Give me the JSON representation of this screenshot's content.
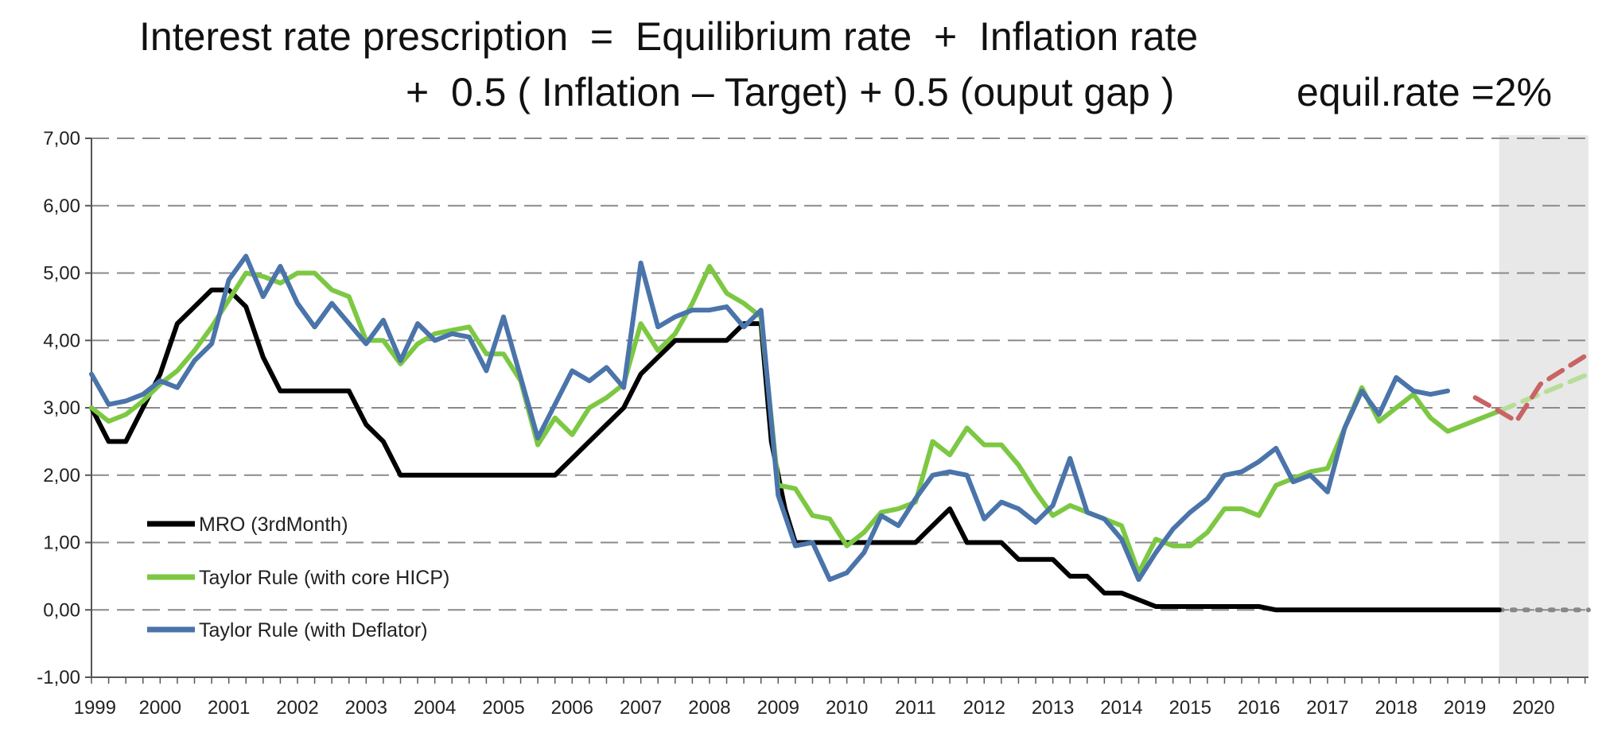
{
  "header": {
    "line1": "Interest rate prescription  =  Equilibrium rate  +  Inflation rate",
    "line2": "+  0.5 ( Inflation – Target) + 0.5 (ouput gap )",
    "line3": "equil.rate =2%"
  },
  "chart_data": {
    "type": "line",
    "title": "",
    "xlabel": "",
    "ylabel": "",
    "ylim": [
      -1,
      7
    ],
    "xlim": [
      1999,
      2020.8
    ],
    "y_ticks": [
      "-1,00",
      "0,00",
      "1,00",
      "2,00",
      "3,00",
      "4,00",
      "5,00",
      "6,00",
      "7,00"
    ],
    "y_tick_values": [
      -1,
      0,
      1,
      2,
      3,
      4,
      5,
      6,
      7
    ],
    "x_ticks": [
      "1999",
      "2000",
      "2001",
      "2002",
      "2003",
      "2004",
      "2005",
      "2006",
      "2007",
      "2008",
      "2009",
      "2010",
      "2011",
      "2012",
      "2013",
      "2014",
      "2015",
      "2016",
      "2017",
      "2018",
      "2019",
      "2020"
    ],
    "x_tick_values": [
      1999,
      2000,
      2001,
      2002,
      2003,
      2004,
      2005,
      2006,
      2007,
      2008,
      2009,
      2010,
      2011,
      2012,
      2013,
      2014,
      2015,
      2016,
      2017,
      2018,
      2019,
      2020
    ],
    "grid": "horizontal-dashed",
    "legend_position": "bottom-left",
    "forecast_shading": {
      "from": 2019.5,
      "to": 2020.8,
      "color": "#e8e8e8"
    },
    "series": [
      {
        "name": "MRO (3rdMonth)",
        "color": "#000000",
        "points": [
          [
            1999.0,
            3.0
          ],
          [
            1999.25,
            2.5
          ],
          [
            1999.5,
            2.5
          ],
          [
            1999.75,
            3.0
          ],
          [
            2000.0,
            3.5
          ],
          [
            2000.25,
            4.25
          ],
          [
            2000.5,
            4.5
          ],
          [
            2000.75,
            4.75
          ],
          [
            2001.0,
            4.75
          ],
          [
            2001.25,
            4.5
          ],
          [
            2001.5,
            3.75
          ],
          [
            2001.75,
            3.25
          ],
          [
            2002.0,
            3.25
          ],
          [
            2002.25,
            3.25
          ],
          [
            2002.5,
            3.25
          ],
          [
            2002.75,
            3.25
          ],
          [
            2003.0,
            2.75
          ],
          [
            2003.25,
            2.5
          ],
          [
            2003.5,
            2.0
          ],
          [
            2003.75,
            2.0
          ],
          [
            2004.0,
            2.0
          ],
          [
            2004.5,
            2.0
          ],
          [
            2005.0,
            2.0
          ],
          [
            2005.5,
            2.0
          ],
          [
            2005.75,
            2.0
          ],
          [
            2006.0,
            2.25
          ],
          [
            2006.25,
            2.5
          ],
          [
            2006.5,
            2.75
          ],
          [
            2006.75,
            3.0
          ],
          [
            2007.0,
            3.5
          ],
          [
            2007.25,
            3.75
          ],
          [
            2007.5,
            4.0
          ],
          [
            2007.75,
            4.0
          ],
          [
            2008.0,
            4.0
          ],
          [
            2008.25,
            4.0
          ],
          [
            2008.5,
            4.25
          ],
          [
            2008.75,
            4.25
          ],
          [
            2008.9,
            2.5
          ],
          [
            2009.1,
            1.5
          ],
          [
            2009.25,
            1.0
          ],
          [
            2009.5,
            1.0
          ],
          [
            2010.0,
            1.0
          ],
          [
            2010.5,
            1.0
          ],
          [
            2011.0,
            1.0
          ],
          [
            2011.25,
            1.25
          ],
          [
            2011.5,
            1.5
          ],
          [
            2011.75,
            1.0
          ],
          [
            2012.0,
            1.0
          ],
          [
            2012.25,
            1.0
          ],
          [
            2012.5,
            0.75
          ],
          [
            2012.75,
            0.75
          ],
          [
            2013.0,
            0.75
          ],
          [
            2013.25,
            0.5
          ],
          [
            2013.5,
            0.5
          ],
          [
            2013.75,
            0.25
          ],
          [
            2014.0,
            0.25
          ],
          [
            2014.25,
            0.15
          ],
          [
            2014.5,
            0.05
          ],
          [
            2015.0,
            0.05
          ],
          [
            2015.5,
            0.05
          ],
          [
            2016.0,
            0.05
          ],
          [
            2016.25,
            0.0
          ],
          [
            2017.0,
            0.0
          ],
          [
            2018.0,
            0.0
          ],
          [
            2019.0,
            0.0
          ],
          [
            2019.5,
            0.0
          ]
        ],
        "projection": {
          "color": "#888888",
          "style": "dotted",
          "points": [
            [
              2019.5,
              0.0
            ],
            [
              2020.8,
              0.0
            ]
          ]
        }
      },
      {
        "name": "Taylor Rule (with core HICP)",
        "color": "#7dc843",
        "points": [
          [
            1999.0,
            3.0
          ],
          [
            1999.25,
            2.8
          ],
          [
            1999.5,
            2.9
          ],
          [
            1999.75,
            3.1
          ],
          [
            2000.0,
            3.35
          ],
          [
            2000.25,
            3.55
          ],
          [
            2000.5,
            3.85
          ],
          [
            2000.75,
            4.2
          ],
          [
            2001.0,
            4.6
          ],
          [
            2001.25,
            5.0
          ],
          [
            2001.5,
            4.95
          ],
          [
            2001.75,
            4.85
          ],
          [
            2002.0,
            5.0
          ],
          [
            2002.25,
            5.0
          ],
          [
            2002.5,
            4.75
          ],
          [
            2002.75,
            4.65
          ],
          [
            2003.0,
            4.0
          ],
          [
            2003.25,
            4.0
          ],
          [
            2003.5,
            3.65
          ],
          [
            2003.75,
            3.95
          ],
          [
            2004.0,
            4.1
          ],
          [
            2004.25,
            4.15
          ],
          [
            2004.5,
            4.2
          ],
          [
            2004.75,
            3.8
          ],
          [
            2005.0,
            3.8
          ],
          [
            2005.25,
            3.4
          ],
          [
            2005.5,
            2.45
          ],
          [
            2005.75,
            2.85
          ],
          [
            2006.0,
            2.6
          ],
          [
            2006.25,
            3.0
          ],
          [
            2006.5,
            3.15
          ],
          [
            2006.75,
            3.35
          ],
          [
            2007.0,
            4.25
          ],
          [
            2007.25,
            3.85
          ],
          [
            2007.5,
            4.1
          ],
          [
            2007.75,
            4.55
          ],
          [
            2008.0,
            5.1
          ],
          [
            2008.25,
            4.7
          ],
          [
            2008.5,
            4.55
          ],
          [
            2008.75,
            4.35
          ],
          [
            2009.0,
            1.85
          ],
          [
            2009.25,
            1.8
          ],
          [
            2009.5,
            1.4
          ],
          [
            2009.75,
            1.35
          ],
          [
            2010.0,
            0.95
          ],
          [
            2010.25,
            1.15
          ],
          [
            2010.5,
            1.45
          ],
          [
            2010.75,
            1.5
          ],
          [
            2011.0,
            1.6
          ],
          [
            2011.25,
            2.5
          ],
          [
            2011.5,
            2.3
          ],
          [
            2011.75,
            2.7
          ],
          [
            2012.0,
            2.45
          ],
          [
            2012.25,
            2.45
          ],
          [
            2012.5,
            2.15
          ],
          [
            2012.75,
            1.75
          ],
          [
            2013.0,
            1.4
          ],
          [
            2013.25,
            1.55
          ],
          [
            2013.5,
            1.45
          ],
          [
            2013.75,
            1.35
          ],
          [
            2014.0,
            1.25
          ],
          [
            2014.25,
            0.55
          ],
          [
            2014.5,
            1.05
          ],
          [
            2014.75,
            0.95
          ],
          [
            2015.0,
            0.95
          ],
          [
            2015.25,
            1.15
          ],
          [
            2015.5,
            1.5
          ],
          [
            2015.75,
            1.5
          ],
          [
            2016.0,
            1.4
          ],
          [
            2016.25,
            1.85
          ],
          [
            2016.5,
            1.95
          ],
          [
            2016.75,
            2.05
          ],
          [
            2017.0,
            2.1
          ],
          [
            2017.25,
            2.7
          ],
          [
            2017.5,
            3.3
          ],
          [
            2017.75,
            2.8
          ],
          [
            2018.0,
            3.0
          ],
          [
            2018.25,
            3.2
          ],
          [
            2018.5,
            2.85
          ],
          [
            2018.75,
            2.65
          ],
          [
            2019.0,
            2.75
          ],
          [
            2019.25,
            2.85
          ],
          [
            2019.5,
            2.95
          ]
        ],
        "projection": {
          "color": "#b7dd98",
          "style": "dashed",
          "points": [
            [
              2019.5,
              2.95
            ],
            [
              2020.8,
              3.5
            ]
          ]
        }
      },
      {
        "name": "Taylor Rule (with Deflator)",
        "color": "#4a74aa",
        "points": [
          [
            1999.0,
            3.5
          ],
          [
            1999.25,
            3.05
          ],
          [
            1999.5,
            3.1
          ],
          [
            1999.75,
            3.2
          ],
          [
            2000.0,
            3.4
          ],
          [
            2000.25,
            3.3
          ],
          [
            2000.5,
            3.7
          ],
          [
            2000.75,
            3.95
          ],
          [
            2001.0,
            4.9
          ],
          [
            2001.25,
            5.25
          ],
          [
            2001.5,
            4.65
          ],
          [
            2001.75,
            5.1
          ],
          [
            2002.0,
            4.55
          ],
          [
            2002.25,
            4.2
          ],
          [
            2002.5,
            4.55
          ],
          [
            2002.75,
            4.25
          ],
          [
            2003.0,
            3.95
          ],
          [
            2003.25,
            4.3
          ],
          [
            2003.5,
            3.7
          ],
          [
            2003.75,
            4.25
          ],
          [
            2004.0,
            4.0
          ],
          [
            2004.25,
            4.1
          ],
          [
            2004.5,
            4.05
          ],
          [
            2004.75,
            3.55
          ],
          [
            2005.0,
            4.35
          ],
          [
            2005.25,
            3.45
          ],
          [
            2005.5,
            2.55
          ],
          [
            2005.75,
            3.05
          ],
          [
            2006.0,
            3.55
          ],
          [
            2006.25,
            3.4
          ],
          [
            2006.5,
            3.6
          ],
          [
            2006.75,
            3.3
          ],
          [
            2007.0,
            5.15
          ],
          [
            2007.25,
            4.2
          ],
          [
            2007.5,
            4.35
          ],
          [
            2007.75,
            4.45
          ],
          [
            2008.0,
            4.45
          ],
          [
            2008.25,
            4.5
          ],
          [
            2008.5,
            4.2
          ],
          [
            2008.75,
            4.45
          ],
          [
            2009.0,
            1.7
          ],
          [
            2009.25,
            0.95
          ],
          [
            2009.5,
            1.0
          ],
          [
            2009.75,
            0.45
          ],
          [
            2010.0,
            0.55
          ],
          [
            2010.25,
            0.85
          ],
          [
            2010.5,
            1.4
          ],
          [
            2010.75,
            1.25
          ],
          [
            2011.0,
            1.65
          ],
          [
            2011.25,
            2.0
          ],
          [
            2011.5,
            2.05
          ],
          [
            2011.75,
            2.0
          ],
          [
            2012.0,
            1.35
          ],
          [
            2012.25,
            1.6
          ],
          [
            2012.5,
            1.5
          ],
          [
            2012.75,
            1.3
          ],
          [
            2013.0,
            1.55
          ],
          [
            2013.25,
            2.25
          ],
          [
            2013.5,
            1.45
          ],
          [
            2013.75,
            1.35
          ],
          [
            2014.0,
            1.05
          ],
          [
            2014.25,
            0.45
          ],
          [
            2014.5,
            0.85
          ],
          [
            2014.75,
            1.2
          ],
          [
            2015.0,
            1.45
          ],
          [
            2015.25,
            1.65
          ],
          [
            2015.5,
            2.0
          ],
          [
            2015.75,
            2.05
          ],
          [
            2016.0,
            2.2
          ],
          [
            2016.25,
            2.4
          ],
          [
            2016.5,
            1.9
          ],
          [
            2016.75,
            2.0
          ],
          [
            2017.0,
            1.75
          ],
          [
            2017.25,
            2.7
          ],
          [
            2017.5,
            3.25
          ],
          [
            2017.75,
            2.9
          ],
          [
            2018.0,
            3.45
          ],
          [
            2018.25,
            3.25
          ],
          [
            2018.5,
            3.2
          ],
          [
            2018.75,
            3.25
          ]
        ]
      },
      {
        "name": "",
        "color": "#c86464",
        "style": "dashed",
        "points": [
          [
            2019.15,
            3.15
          ],
          [
            2019.5,
            2.95
          ],
          [
            2019.75,
            2.8
          ],
          [
            2020.1,
            3.35
          ],
          [
            2020.8,
            3.8
          ]
        ]
      }
    ]
  }
}
